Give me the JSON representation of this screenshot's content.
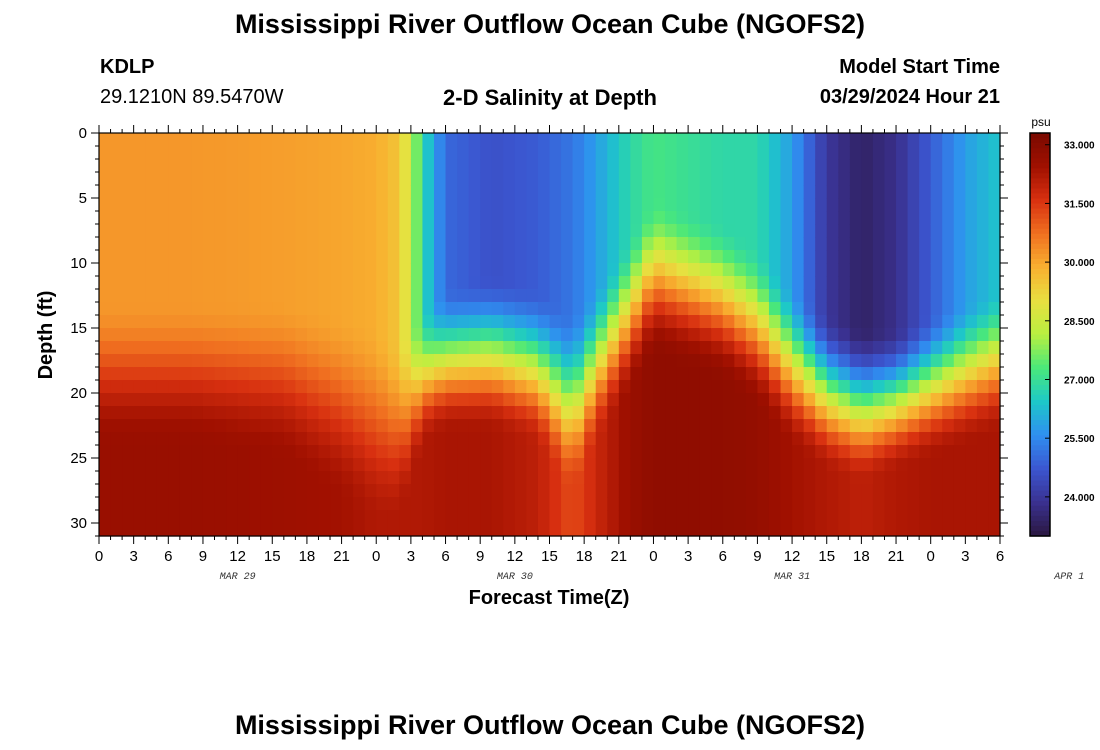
{
  "page": {
    "title_top": "Mississippi River Outflow Ocean Cube (NGOFS2)",
    "title_bottom": "Mississippi River Outflow Ocean Cube (NGOFS2)",
    "station_id": "KDLP",
    "station_coords": "29.1210N  89.5470W",
    "model_start_label": "Model Start Time",
    "model_start_value": "03/29/2024 Hour 21"
  },
  "chart_data": {
    "type": "heatmap",
    "title": "2-D Salinity at Depth",
    "xlabel": "Forecast Time(Z)",
    "ylabel": "Depth (ft)",
    "x_tick_labels": [
      "0",
      "3",
      "6",
      "9",
      "12",
      "15",
      "18",
      "21",
      "0",
      "3",
      "6",
      "9",
      "12",
      "15",
      "18",
      "21",
      "0",
      "3",
      "6",
      "9",
      "12",
      "15",
      "18",
      "21",
      "0",
      "3",
      "6"
    ],
    "date_labels": [
      {
        "label": "MAR 29",
        "at_hour": 12
      },
      {
        "label": "MAR 30",
        "at_hour": 36
      },
      {
        "label": "MAR 31",
        "at_hour": 60
      },
      {
        "label": "APR 1",
        "at_hour": 84
      }
    ],
    "xlim_hours": [
      0,
      78
    ],
    "ylim_ft": [
      0,
      31
    ],
    "y_ticks": [
      0,
      5,
      10,
      15,
      20,
      25,
      30
    ],
    "y_inverted": true,
    "colorbar": {
      "unit": "psu",
      "range": [
        23.0,
        33.3
      ],
      "tick_labels": [
        "33.000",
        "31.500",
        "30.000",
        "28.500",
        "27.000",
        "25.500",
        "24.000"
      ],
      "tick_values": [
        33.0,
        31.5,
        30.0,
        28.5,
        27.0,
        25.5,
        24.0
      ]
    },
    "grid": false,
    "cell_hours": 1,
    "cell_ft": 1,
    "salinity_profiles": [
      {
        "hour": 0,
        "surface": 30.2,
        "cline_top_ft": 13,
        "cline_bottom_ft": 24,
        "bottom": 32.6
      },
      {
        "hour": 8,
        "surface": 30.2,
        "cline_top_ft": 13,
        "cline_bottom_ft": 24,
        "bottom": 32.6
      },
      {
        "hour": 16,
        "surface": 30.1,
        "cline_top_ft": 13,
        "cline_bottom_ft": 25,
        "bottom": 32.5
      },
      {
        "hour": 21,
        "surface": 30.0,
        "cline_top_ft": 14,
        "cline_bottom_ft": 28,
        "bottom": 32.4
      },
      {
        "hour": 24,
        "surface": 29.9,
        "cline_top_ft": 15,
        "cline_bottom_ft": 30,
        "bottom": 32.2
      },
      {
        "hour": 26,
        "surface": 29.5,
        "cline_top_ft": 16,
        "cline_bottom_ft": 30,
        "bottom": 32.2
      },
      {
        "hour": 27,
        "surface": 28.4,
        "cline_top_ft": 15,
        "cline_bottom_ft": 27,
        "bottom": 32.2
      },
      {
        "hour": 28,
        "surface": 26.8,
        "cline_top_ft": 14,
        "cline_bottom_ft": 24,
        "bottom": 32.2
      },
      {
        "hour": 30,
        "surface": 25.0,
        "cline_top_ft": 12,
        "cline_bottom_ft": 23,
        "bottom": 32.3
      },
      {
        "hour": 34,
        "surface": 24.6,
        "cline_top_ft": 11,
        "cline_bottom_ft": 23,
        "bottom": 32.3
      },
      {
        "hour": 38,
        "surface": 24.8,
        "cline_top_ft": 12,
        "cline_bottom_ft": 24,
        "bottom": 32.0
      },
      {
        "hour": 41,
        "surface": 25.2,
        "cline_top_ft": 14,
        "cline_bottom_ft": 28,
        "bottom": 31.2
      },
      {
        "hour": 43,
        "surface": 25.8,
        "cline_top_ft": 12,
        "cline_bottom_ft": 24,
        "bottom": 31.8
      },
      {
        "hour": 46,
        "surface": 26.8,
        "cline_top_ft": 8,
        "cline_bottom_ft": 20,
        "bottom": 32.6
      },
      {
        "hour": 48,
        "surface": 27.2,
        "cline_top_ft": 5,
        "cline_bottom_ft": 17,
        "bottom": 32.8
      },
      {
        "hour": 51,
        "surface": 27.0,
        "cline_top_ft": 6,
        "cline_bottom_ft": 18,
        "bottom": 32.8
      },
      {
        "hour": 54,
        "surface": 26.8,
        "cline_top_ft": 7,
        "cline_bottom_ft": 19,
        "bottom": 32.8
      },
      {
        "hour": 57,
        "surface": 26.8,
        "cline_top_ft": 9,
        "cline_bottom_ft": 21,
        "bottom": 32.7
      },
      {
        "hour": 60,
        "surface": 25.8,
        "cline_top_ft": 12,
        "cline_bottom_ft": 24,
        "bottom": 32.4
      },
      {
        "hour": 63,
        "surface": 24.0,
        "cline_top_ft": 14,
        "cline_bottom_ft": 26,
        "bottom": 32.2
      },
      {
        "hour": 66,
        "surface": 23.4,
        "cline_top_ft": 15,
        "cline_bottom_ft": 27,
        "bottom": 32.0
      },
      {
        "hour": 69,
        "surface": 23.8,
        "cline_top_ft": 15,
        "cline_bottom_ft": 26,
        "bottom": 32.2
      },
      {
        "hour": 72,
        "surface": 24.8,
        "cline_top_ft": 14,
        "cline_bottom_ft": 25,
        "bottom": 32.3
      },
      {
        "hour": 75,
        "surface": 25.8,
        "cline_top_ft": 13,
        "cline_bottom_ft": 24,
        "bottom": 32.3
      },
      {
        "hour": 78,
        "surface": 26.4,
        "cline_top_ft": 12,
        "cline_bottom_ft": 23,
        "bottom": 32.3
      }
    ],
    "colormap": [
      "#2a1740",
      "#3a3190",
      "#3b56d0",
      "#2f8ff0",
      "#1dc8c8",
      "#4ae87a",
      "#b8f040",
      "#e8e040",
      "#f8b030",
      "#f07020",
      "#d83010",
      "#a01000",
      "#7a0a00"
    ]
  }
}
